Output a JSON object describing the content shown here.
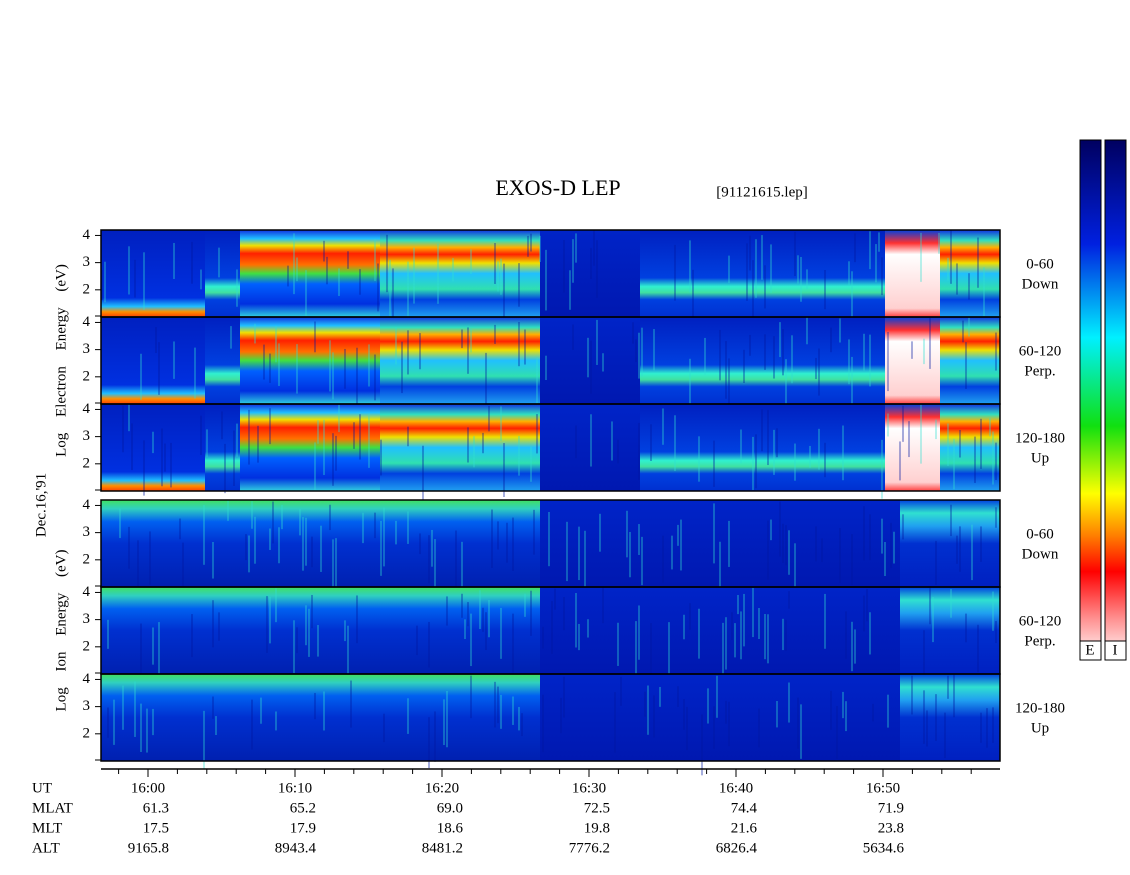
{
  "header": {
    "title": "EXOS-D LEP",
    "file": "[91121615.lep]"
  },
  "date": "Dec.16,'91",
  "axis": {
    "ylim": [
      1,
      4.2
    ],
    "yticks": [
      2,
      3,
      4
    ]
  },
  "groups": [
    {
      "axis_label": "Log Electron Energy (eV)",
      "panels": [
        {
          "range": "0-60",
          "direction": "Down"
        },
        {
          "range": "60-120",
          "direction": "Perp."
        },
        {
          "range": "120-180",
          "direction": "Up"
        }
      ]
    },
    {
      "axis_label": "Log Ion Energy (eV)",
      "panels": [
        {
          "range": "0-60",
          "direction": "Down"
        },
        {
          "range": "60-120",
          "direction": "Perp."
        },
        {
          "range": "120-180",
          "direction": "Up"
        }
      ]
    }
  ],
  "colorbar": {
    "labels": [
      "E",
      "I"
    ]
  },
  "ephemeris": {
    "labels": [
      "UT",
      "MLAT",
      "MLT",
      "ALT"
    ],
    "rows": [
      [
        "16:00",
        "16:10",
        "16:20",
        "16:30",
        "16:40",
        "16:50"
      ],
      [
        "61.3",
        "65.2",
        "69.0",
        "72.5",
        "74.4",
        "71.9"
      ],
      [
        "17.5",
        "17.9",
        "18.6",
        "19.8",
        "21.6",
        "23.8"
      ],
      [
        "9165.8",
        "8943.4",
        "8481.2",
        "7776.2",
        "6826.4",
        "5634.6"
      ]
    ]
  }
}
